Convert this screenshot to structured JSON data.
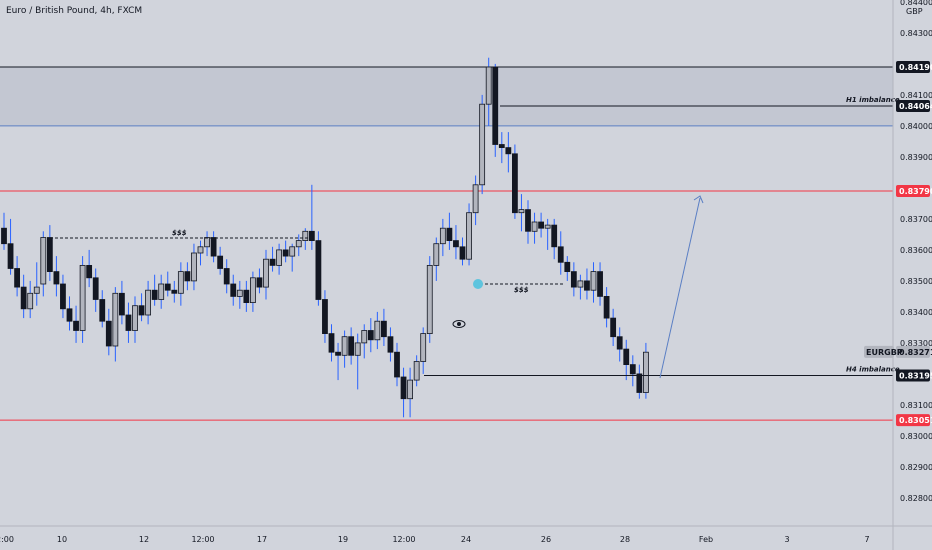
{
  "chart_data": {
    "type": "candlestick",
    "title": "Euro / British Pound, 4h, FXCM",
    "symbol": "EURGBP",
    "currency": "GBP",
    "ylim": [
      0.8274,
      0.8446
    ],
    "y_ticks": [
      "0.84400",
      "0.84300",
      "0.84100",
      "0.84000",
      "0.83900",
      "0.83700",
      "0.83600",
      "0.83500",
      "0.83400",
      "0.83300",
      "0.83100",
      "0.83000",
      "0.82900",
      "0.82800"
    ],
    "x_ticks": [
      "2:00",
      "10",
      "12",
      "12:00",
      "17",
      "19",
      "12:00",
      "24",
      "26",
      "28",
      "Feb",
      "3",
      "7"
    ],
    "price_tags": [
      {
        "label": "0.84190",
        "value": 0.8419,
        "color": "#131722"
      },
      {
        "label": "0.84064",
        "value": 0.84064,
        "color": "#131722"
      },
      {
        "label": "0.83790",
        "value": 0.8379,
        "color": "#f23645"
      },
      {
        "label": "0.83271",
        "value": 0.83271,
        "color": "#b2b5be"
      },
      {
        "label": "0.83195",
        "value": 0.83195,
        "color": "#131722"
      },
      {
        "label": "0.83051",
        "value": 0.83051,
        "color": "#f23645"
      }
    ],
    "symbol_tag": "EURGBP",
    "levels": [
      {
        "name": "imbalance-zone-top",
        "value": 0.8419,
        "color": "#131722"
      },
      {
        "name": "imbalance-zone-bottom",
        "value": 0.84,
        "color": "#5b7fc4"
      },
      {
        "name": "red-level-upper",
        "value": 0.8379,
        "color": "#f23645"
      },
      {
        "name": "red-level-lower",
        "value": 0.83051,
        "color": "#f23645"
      }
    ],
    "annotations": [
      {
        "text": "H1 imbalance",
        "value": 0.84064
      },
      {
        "text": "H4 imbalance",
        "value": 0.83195
      },
      {
        "text": "$$$",
        "value": 0.83655
      },
      {
        "text": "$$$",
        "value": 0.8351
      }
    ],
    "candles": [
      [
        0.8367,
        0.8372,
        0.836,
        0.8362
      ],
      [
        0.8362,
        0.837,
        0.8352,
        0.8354
      ],
      [
        0.8354,
        0.8358,
        0.8345,
        0.8348
      ],
      [
        0.8348,
        0.8352,
        0.8338,
        0.8341
      ],
      [
        0.8341,
        0.835,
        0.8338,
        0.8346
      ],
      [
        0.8346,
        0.8356,
        0.8342,
        0.8348
      ],
      [
        0.8349,
        0.8366,
        0.8345,
        0.8364
      ],
      [
        0.8364,
        0.8368,
        0.835,
        0.8353
      ],
      [
        0.8353,
        0.8358,
        0.8345,
        0.8349
      ],
      [
        0.8349,
        0.8352,
        0.8338,
        0.8341
      ],
      [
        0.8341,
        0.8345,
        0.8334,
        0.8337
      ],
      [
        0.8337,
        0.8342,
        0.833,
        0.8334
      ],
      [
        0.8334,
        0.8358,
        0.833,
        0.8355
      ],
      [
        0.8355,
        0.836,
        0.8348,
        0.8351
      ],
      [
        0.8351,
        0.8354,
        0.834,
        0.8344
      ],
      [
        0.8344,
        0.8347,
        0.8335,
        0.8337
      ],
      [
        0.8337,
        0.8341,
        0.8326,
        0.8329
      ],
      [
        0.8329,
        0.8348,
        0.8324,
        0.8346
      ],
      [
        0.8346,
        0.835,
        0.8336,
        0.8339
      ],
      [
        0.8339,
        0.8343,
        0.833,
        0.8334
      ],
      [
        0.8334,
        0.8345,
        0.833,
        0.8342
      ],
      [
        0.8342,
        0.8346,
        0.8337,
        0.8339
      ],
      [
        0.8339,
        0.835,
        0.8336,
        0.8347
      ],
      [
        0.8347,
        0.8352,
        0.8342,
        0.8344
      ],
      [
        0.8344,
        0.8352,
        0.8341,
        0.8349
      ],
      [
        0.8349,
        0.8353,
        0.8345,
        0.8347
      ],
      [
        0.8347,
        0.835,
        0.8343,
        0.8346
      ],
      [
        0.8346,
        0.8356,
        0.8342,
        0.8353
      ],
      [
        0.8353,
        0.8356,
        0.8347,
        0.835
      ],
      [
        0.835,
        0.8362,
        0.8347,
        0.8359
      ],
      [
        0.8359,
        0.8363,
        0.8355,
        0.8361
      ],
      [
        0.8361,
        0.8366,
        0.8358,
        0.8364
      ],
      [
        0.8364,
        0.8366,
        0.8356,
        0.8358
      ],
      [
        0.8358,
        0.8361,
        0.8352,
        0.8354
      ],
      [
        0.8354,
        0.8357,
        0.8346,
        0.8349
      ],
      [
        0.8349,
        0.8352,
        0.8342,
        0.8345
      ],
      [
        0.8345,
        0.835,
        0.8341,
        0.8347
      ],
      [
        0.8347,
        0.835,
        0.834,
        0.8343
      ],
      [
        0.8343,
        0.8353,
        0.834,
        0.8351
      ],
      [
        0.8351,
        0.8354,
        0.8346,
        0.8348
      ],
      [
        0.8348,
        0.836,
        0.8344,
        0.8357
      ],
      [
        0.8357,
        0.8361,
        0.8353,
        0.8355
      ],
      [
        0.8355,
        0.8362,
        0.8352,
        0.836
      ],
      [
        0.836,
        0.8363,
        0.8356,
        0.8358
      ],
      [
        0.8358,
        0.8362,
        0.8353,
        0.8361
      ],
      [
        0.8361,
        0.8365,
        0.8358,
        0.8363
      ],
      [
        0.8363,
        0.8367,
        0.836,
        0.8366
      ],
      [
        0.8366,
        0.8381,
        0.836,
        0.8363
      ],
      [
        0.8363,
        0.8366,
        0.8342,
        0.8344
      ],
      [
        0.8344,
        0.8347,
        0.833,
        0.8333
      ],
      [
        0.8333,
        0.8336,
        0.8324,
        0.8327
      ],
      [
        0.8327,
        0.833,
        0.8318,
        0.8326
      ],
      [
        0.8326,
        0.8334,
        0.8322,
        0.8332
      ],
      [
        0.8332,
        0.8335,
        0.8323,
        0.8326
      ],
      [
        0.8326,
        0.8333,
        0.8315,
        0.833
      ],
      [
        0.833,
        0.8336,
        0.8325,
        0.8334
      ],
      [
        0.8334,
        0.8338,
        0.8327,
        0.8331
      ],
      [
        0.8331,
        0.834,
        0.8328,
        0.8337
      ],
      [
        0.8337,
        0.8341,
        0.8329,
        0.8332
      ],
      [
        0.8332,
        0.8335,
        0.8324,
        0.8327
      ],
      [
        0.8327,
        0.833,
        0.8316,
        0.8319
      ],
      [
        0.8319,
        0.8322,
        0.8306,
        0.8312
      ],
      [
        0.8312,
        0.8322,
        0.8306,
        0.8318
      ],
      [
        0.8318,
        0.8326,
        0.8316,
        0.8324
      ],
      [
        0.8324,
        0.8335,
        0.832,
        0.8333
      ],
      [
        0.8333,
        0.8358,
        0.833,
        0.8355
      ],
      [
        0.8355,
        0.8364,
        0.835,
        0.8362
      ],
      [
        0.8362,
        0.837,
        0.8358,
        0.8367
      ],
      [
        0.8367,
        0.8372,
        0.836,
        0.8363
      ],
      [
        0.8363,
        0.8368,
        0.8357,
        0.8361
      ],
      [
        0.8361,
        0.8364,
        0.8355,
        0.8357
      ],
      [
        0.8357,
        0.8375,
        0.8355,
        0.8372
      ],
      [
        0.8372,
        0.8384,
        0.8368,
        0.8381
      ],
      [
        0.8381,
        0.841,
        0.8378,
        0.8407
      ],
      [
        0.8407,
        0.8422,
        0.84,
        0.8419
      ],
      [
        0.8419,
        0.842,
        0.839,
        0.8394
      ],
      [
        0.8394,
        0.8398,
        0.8388,
        0.8393
      ],
      [
        0.8393,
        0.8398,
        0.8385,
        0.8391
      ],
      [
        0.8391,
        0.8394,
        0.837,
        0.8372
      ],
      [
        0.8372,
        0.8378,
        0.8366,
        0.8373
      ],
      [
        0.8373,
        0.8376,
        0.8362,
        0.8366
      ],
      [
        0.8366,
        0.8372,
        0.8362,
        0.8369
      ],
      [
        0.8369,
        0.8372,
        0.8364,
        0.8367
      ],
      [
        0.8367,
        0.837,
        0.836,
        0.8368
      ],
      [
        0.8368,
        0.837,
        0.8357,
        0.8361
      ],
      [
        0.8361,
        0.8366,
        0.8352,
        0.8356
      ],
      [
        0.8356,
        0.8358,
        0.835,
        0.8353
      ],
      [
        0.8353,
        0.8356,
        0.8345,
        0.8348
      ],
      [
        0.8348,
        0.8352,
        0.8344,
        0.835
      ],
      [
        0.835,
        0.8354,
        0.8344,
        0.8347
      ],
      [
        0.8347,
        0.8356,
        0.8343,
        0.8353
      ],
      [
        0.8353,
        0.8356,
        0.8342,
        0.8345
      ],
      [
        0.8345,
        0.8348,
        0.8335,
        0.8338
      ],
      [
        0.8338,
        0.8341,
        0.8329,
        0.8332
      ],
      [
        0.8332,
        0.8335,
        0.8324,
        0.8328
      ],
      [
        0.8328,
        0.8331,
        0.8318,
        0.8323
      ],
      [
        0.8323,
        0.8326,
        0.8316,
        0.832
      ],
      [
        0.832,
        0.8323,
        0.8312,
        0.8314
      ],
      [
        0.8314,
        0.833,
        0.8312,
        0.8327
      ]
    ]
  }
}
